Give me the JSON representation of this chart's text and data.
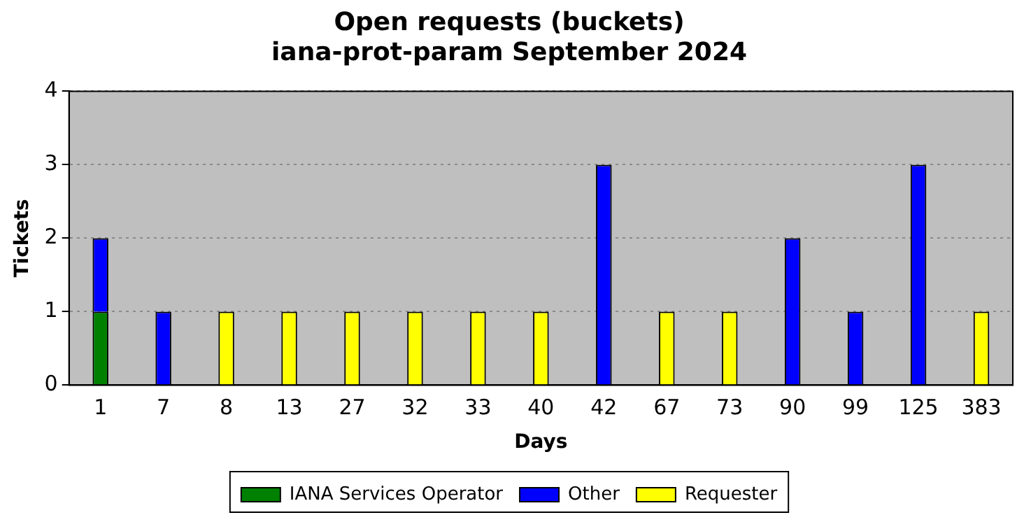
{
  "chart_data": {
    "type": "bar",
    "title": "Open requests (buckets)\niana-prot-param September 2024",
    "xlabel": "Days",
    "ylabel": "Tickets",
    "categories": [
      "1",
      "7",
      "8",
      "13",
      "27",
      "32",
      "33",
      "40",
      "42",
      "67",
      "73",
      "90",
      "99",
      "125",
      "383"
    ],
    "stacked": true,
    "ylim": [
      0,
      4
    ],
    "yticks": [
      0,
      1,
      2,
      3,
      4
    ],
    "grid": "y",
    "legend": "bottom",
    "series": [
      {
        "name": "IANA Services Operator",
        "color": "#008000",
        "values": [
          1,
          0,
          0,
          0,
          0,
          0,
          0,
          0,
          0,
          0,
          0,
          0,
          0,
          0,
          0
        ]
      },
      {
        "name": "Other",
        "color": "#0000ff",
        "values": [
          1,
          1,
          0,
          0,
          0,
          0,
          0,
          0,
          3,
          0,
          0,
          2,
          1,
          3,
          0
        ]
      },
      {
        "name": "Requester",
        "color": "#ffff00",
        "values": [
          0,
          0,
          1,
          1,
          1,
          1,
          1,
          1,
          0,
          1,
          1,
          0,
          0,
          0,
          1
        ]
      }
    ]
  }
}
